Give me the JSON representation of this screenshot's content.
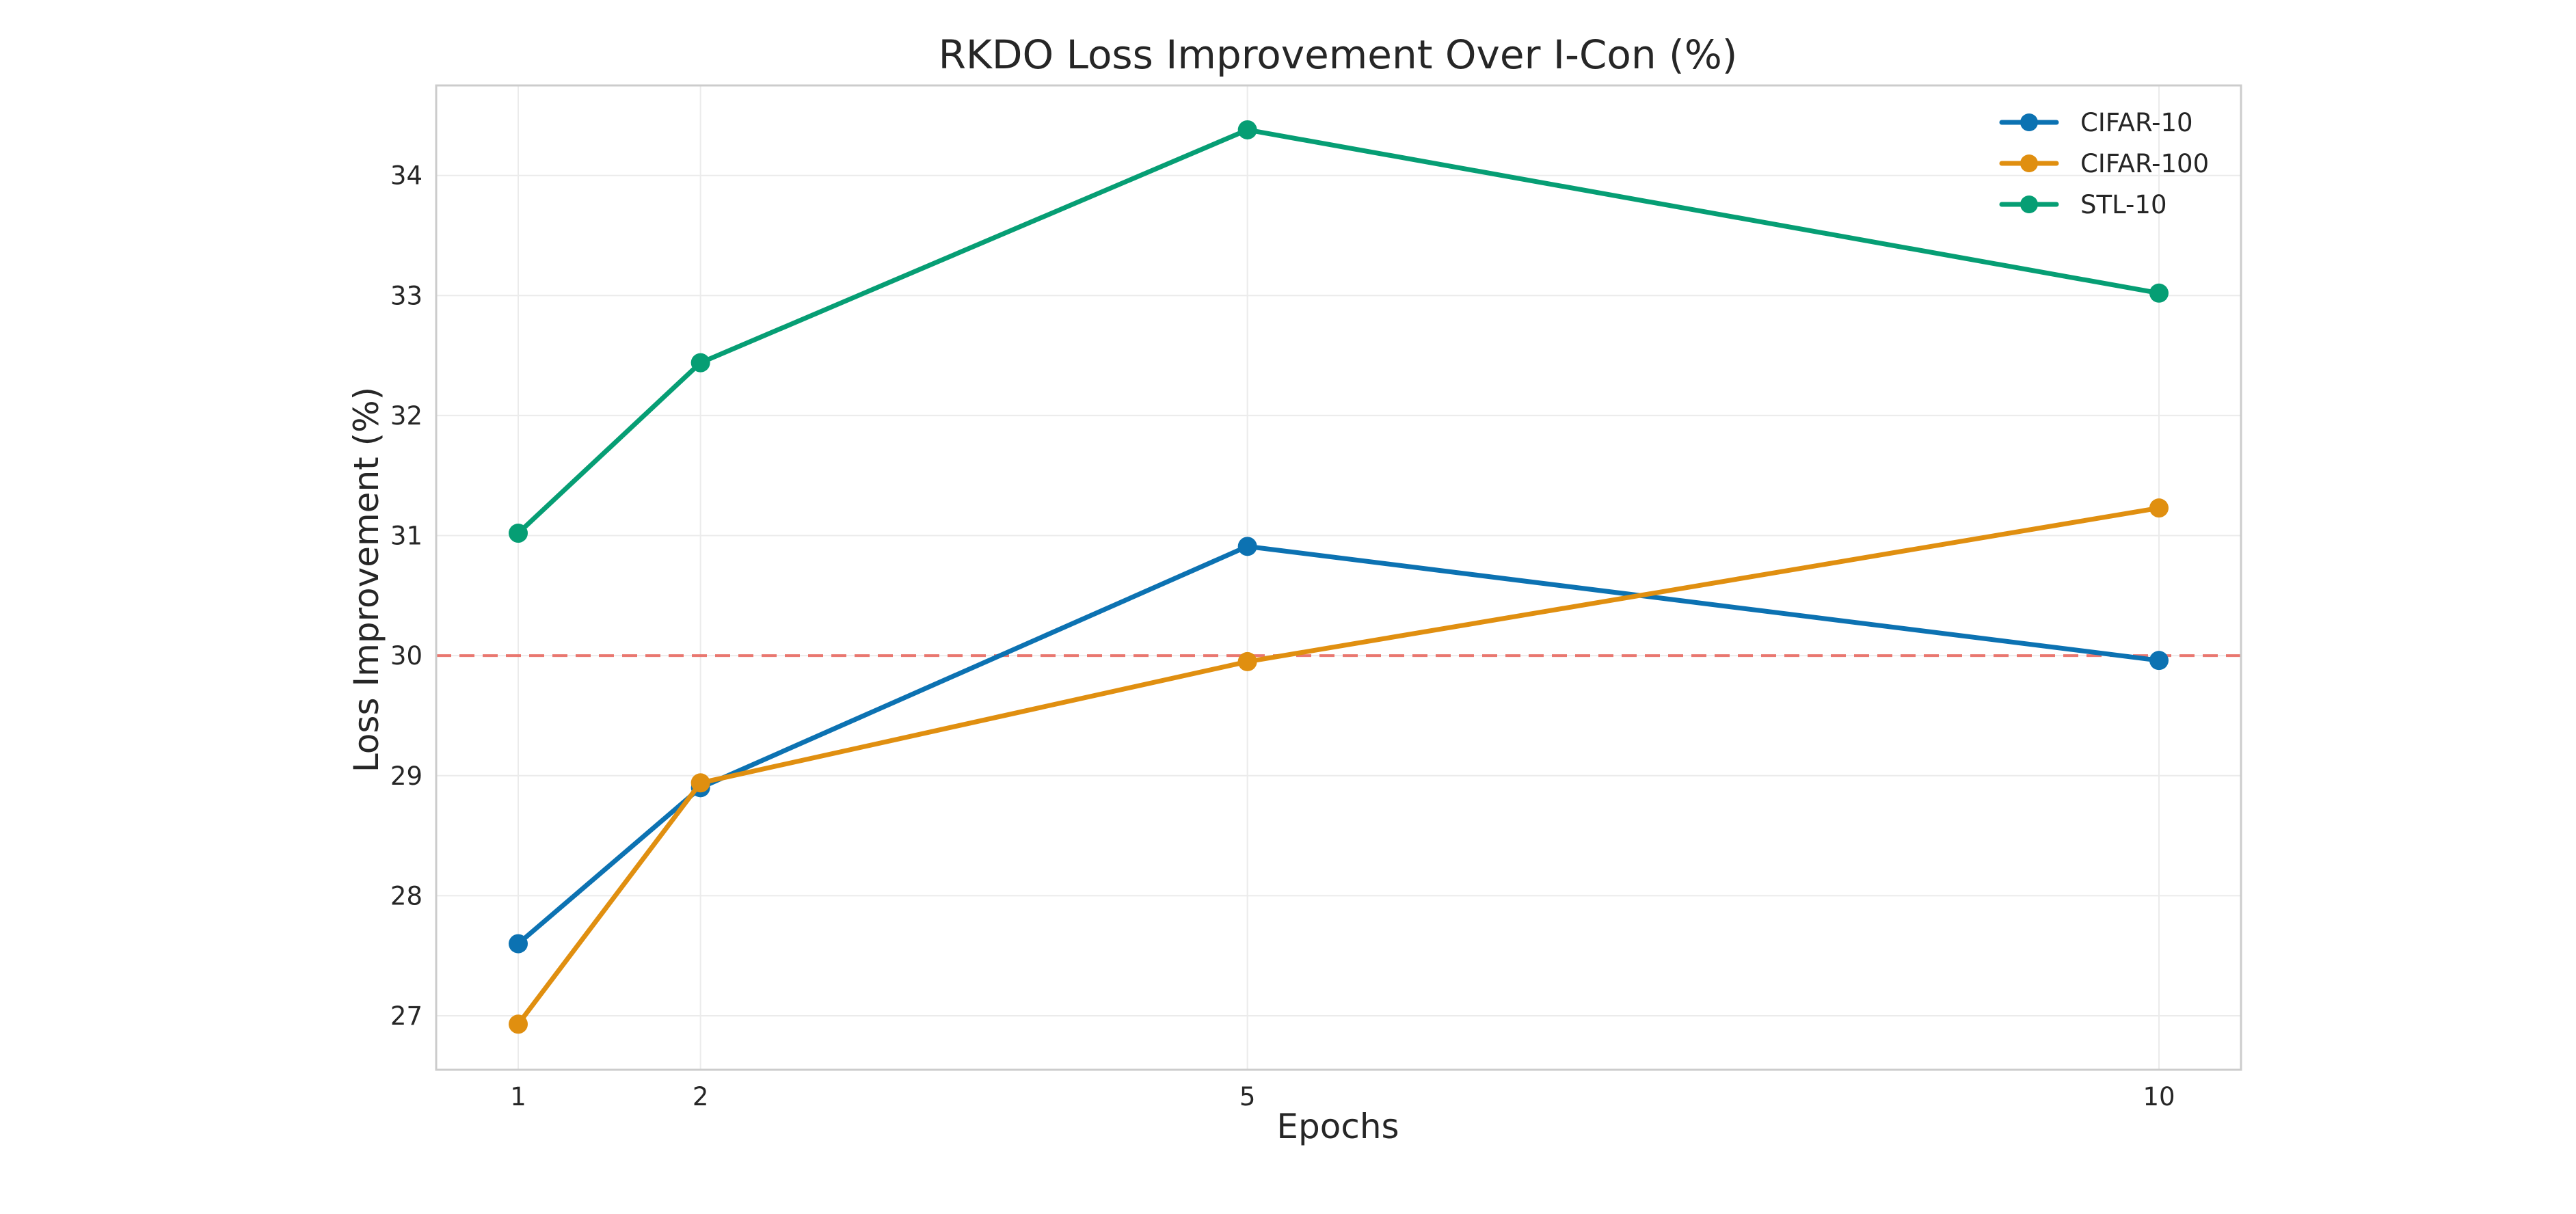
{
  "chart_data": {
    "type": "line",
    "title": "RKDO Loss Improvement Over I-Con (%)",
    "xlabel": "Epochs",
    "ylabel": "Loss Improvement (%)",
    "x": [
      1,
      2,
      5,
      10
    ],
    "xticks": [
      1,
      2,
      5,
      10
    ],
    "xlim": [
      0.55,
      10.45
    ],
    "ylim": [
      26.55,
      34.75
    ],
    "yticks": [
      27,
      28,
      29,
      30,
      31,
      32,
      33,
      34
    ],
    "grid": true,
    "legend_position": "top-right",
    "reference_line": {
      "y": 30,
      "color": "#e8635a",
      "style": "dashed"
    },
    "series": [
      {
        "name": "CIFAR-10",
        "color": "#0c72b2",
        "values": [
          27.6,
          28.9,
          30.91,
          29.96
        ]
      },
      {
        "name": "CIFAR-100",
        "color": "#e08f10",
        "values": [
          26.93,
          28.94,
          29.95,
          31.23
        ]
      },
      {
        "name": "STL-10",
        "color": "#069e74",
        "values": [
          31.02,
          32.44,
          34.38,
          33.02
        ]
      }
    ]
  }
}
